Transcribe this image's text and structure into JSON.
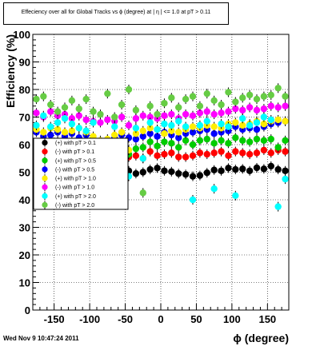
{
  "chart_data": {
    "type": "scatter",
    "title": "Effeciency over all for Global Tracks vs ϕ (degree) at |  η | <= 1.0 at pT > 0.11",
    "xlabel": "ϕ (degree)",
    "ylabel": "Efficiency (%)",
    "xlim": [
      -180,
      180
    ],
    "ylim": [
      0,
      100
    ],
    "x_ticks": [
      -150,
      -100,
      -50,
      0,
      50,
      100,
      150
    ],
    "x_tick_labels": [
      "-150",
      "-100",
      "-50",
      "0",
      "50",
      "100",
      "150"
    ],
    "y_ticks": [
      0,
      10,
      20,
      30,
      40,
      50,
      60,
      70,
      80,
      90,
      100
    ],
    "y_tick_labels": [
      "0",
      "10",
      "20",
      "30",
      "40",
      "50",
      "60",
      "70",
      "80",
      "90",
      "100"
    ],
    "grid": true,
    "legend_position": "left-middle",
    "series": [
      {
        "name": "(+) with pT > 0.1",
        "color": "#000000",
        "points": [
          [
            -175,
            52.5
          ],
          [
            -165,
            51.8
          ],
          [
            -155,
            51.0
          ],
          [
            -145,
            52.2
          ],
          [
            -135,
            50.8
          ],
          [
            -125,
            51.6
          ],
          [
            -115,
            50.5
          ],
          [
            -105,
            49.8
          ],
          [
            -95,
            49.5
          ],
          [
            -85,
            48.5
          ],
          [
            -75,
            48.8
          ],
          [
            -65,
            48.6
          ],
          [
            -55,
            49.5
          ],
          [
            -45,
            50.5
          ],
          [
            -35,
            49.5
          ],
          [
            -25,
            50.0
          ],
          [
            -15,
            51.0
          ],
          [
            -5,
            51.5
          ],
          [
            5,
            50.5
          ],
          [
            15,
            50.2
          ],
          [
            25,
            49.5
          ],
          [
            35,
            49.2
          ],
          [
            45,
            48.5
          ],
          [
            55,
            48.8
          ],
          [
            65,
            49.8
          ],
          [
            75,
            50.8
          ],
          [
            85,
            50.5
          ],
          [
            95,
            51.5
          ],
          [
            105,
            51.0
          ],
          [
            115,
            51.2
          ],
          [
            125,
            50.5
          ],
          [
            135,
            51.6
          ],
          [
            145,
            51.2
          ],
          [
            155,
            52.2
          ],
          [
            165,
            51.0
          ],
          [
            175,
            50.5
          ]
        ]
      },
      {
        "name": "(-) with pT > 0.1",
        "color": "#ff0000",
        "points": [
          [
            -175,
            56.5
          ],
          [
            -165,
            56.0
          ],
          [
            -155,
            56.5
          ],
          [
            -145,
            58.0
          ],
          [
            -135,
            56.5
          ],
          [
            -125,
            57.0
          ],
          [
            -115,
            55.5
          ],
          [
            -105,
            56.5
          ],
          [
            -95,
            55.0
          ],
          [
            -85,
            54.0
          ],
          [
            -75,
            54.5
          ],
          [
            -65,
            55.0
          ],
          [
            -55,
            56.0
          ],
          [
            -45,
            55.5
          ],
          [
            -35,
            56.0
          ],
          [
            -25,
            55.0
          ],
          [
            -15,
            57.5
          ],
          [
            -5,
            56.0
          ],
          [
            5,
            56.5
          ],
          [
            15,
            57.0
          ],
          [
            25,
            55.5
          ],
          [
            35,
            55.5
          ],
          [
            45,
            56.0
          ],
          [
            55,
            57.0
          ],
          [
            65,
            56.5
          ],
          [
            75,
            57.0
          ],
          [
            85,
            57.5
          ],
          [
            95,
            56.0
          ],
          [
            105,
            57.5
          ],
          [
            115,
            57.0
          ],
          [
            125,
            56.5
          ],
          [
            135,
            57.0
          ],
          [
            145,
            58.0
          ],
          [
            155,
            57.0
          ],
          [
            165,
            58.0
          ],
          [
            175,
            57.5
          ]
        ]
      },
      {
        "name": "(+) with pT > 0.5",
        "color": "#00cc00",
        "points": [
          [
            -175,
            60.0
          ],
          [
            -165,
            60.5
          ],
          [
            -155,
            58.5
          ],
          [
            -145,
            61.0
          ],
          [
            -135,
            59.0
          ],
          [
            -125,
            60.5
          ],
          [
            -115,
            60.0
          ],
          [
            -105,
            61.0
          ],
          [
            -95,
            58.5
          ],
          [
            -85,
            56.5
          ],
          [
            -75,
            58.0
          ],
          [
            -65,
            57.5
          ],
          [
            -55,
            59.0
          ],
          [
            -45,
            56.5
          ],
          [
            -35,
            58.5
          ],
          [
            -25,
            59.0
          ],
          [
            -15,
            61.0
          ],
          [
            -5,
            59.5
          ],
          [
            5,
            61.0
          ],
          [
            15,
            60.5
          ],
          [
            25,
            59.0
          ],
          [
            35,
            61.5
          ],
          [
            45,
            60.0
          ],
          [
            55,
            61.5
          ],
          [
            65,
            62.0
          ],
          [
            75,
            60.5
          ],
          [
            85,
            61.5
          ],
          [
            95,
            60.5
          ],
          [
            105,
            62.5
          ],
          [
            115,
            61.5
          ],
          [
            125,
            61.0
          ],
          [
            135,
            62.0
          ],
          [
            145,
            61.5
          ],
          [
            155,
            62.0
          ],
          [
            165,
            59.0
          ],
          [
            175,
            61.5
          ]
        ]
      },
      {
        "name": "(-) with pT > 0.5",
        "color": "#0000ff",
        "points": [
          [
            -175,
            64.5
          ],
          [
            -165,
            63.0
          ],
          [
            -155,
            63.5
          ],
          [
            -145,
            64.5
          ],
          [
            -135,
            63.0
          ],
          [
            -125,
            64.0
          ],
          [
            -115,
            62.5
          ],
          [
            -105,
            63.5
          ],
          [
            -95,
            62.0
          ],
          [
            -85,
            61.0
          ],
          [
            -75,
            61.5
          ],
          [
            -65,
            62.5
          ],
          [
            -55,
            63.5
          ],
          [
            -45,
            62.5
          ],
          [
            -35,
            62.0
          ],
          [
            -25,
            63.0
          ],
          [
            -15,
            64.0
          ],
          [
            -5,
            63.0
          ],
          [
            5,
            64.5
          ],
          [
            15,
            63.5
          ],
          [
            25,
            62.5
          ],
          [
            35,
            64.0
          ],
          [
            45,
            64.5
          ],
          [
            55,
            65.0
          ],
          [
            65,
            65.5
          ],
          [
            75,
            64.0
          ],
          [
            85,
            64.5
          ],
          [
            95,
            65.0
          ],
          [
            105,
            66.5
          ],
          [
            115,
            65.5
          ],
          [
            125,
            66.0
          ],
          [
            135,
            65.5
          ],
          [
            145,
            66.5
          ],
          [
            155,
            67.5
          ],
          [
            165,
            68.0
          ],
          [
            175,
            68.5
          ]
        ]
      },
      {
        "name": "(+) with pT > 1.0",
        "color": "#ffee00",
        "points": [
          [
            -175,
            65.5
          ],
          [
            -165,
            64.5
          ],
          [
            -155,
            66.0
          ],
          [
            -145,
            65.5
          ],
          [
            -135,
            64.5
          ],
          [
            -125,
            65.0
          ],
          [
            -115,
            66.0
          ],
          [
            -105,
            64.5
          ],
          [
            -95,
            63.0
          ],
          [
            -85,
            61.5
          ],
          [
            -75,
            62.0
          ],
          [
            -65,
            63.5
          ],
          [
            -55,
            64.5
          ],
          [
            -45,
            58.0
          ],
          [
            -35,
            64.0
          ],
          [
            -25,
            65.0
          ],
          [
            -15,
            66.0
          ],
          [
            -5,
            65.5
          ],
          [
            5,
            64.0
          ],
          [
            15,
            65.0
          ],
          [
            25,
            64.5
          ],
          [
            35,
            65.5
          ],
          [
            45,
            66.5
          ],
          [
            55,
            66.0
          ],
          [
            65,
            67.0
          ],
          [
            75,
            66.5
          ],
          [
            85,
            66.0
          ],
          [
            95,
            67.5
          ],
          [
            105,
            68.0
          ],
          [
            115,
            67.0
          ],
          [
            125,
            67.5
          ],
          [
            135,
            68.5
          ],
          [
            145,
            67.5
          ],
          [
            155,
            68.5
          ],
          [
            165,
            69.0
          ],
          [
            175,
            68.5
          ]
        ]
      },
      {
        "name": "(-) with pT > 1.0",
        "color": "#ff00ff",
        "points": [
          [
            -175,
            71.5
          ],
          [
            -165,
            70.0
          ],
          [
            -155,
            72.0
          ],
          [
            -145,
            70.5
          ],
          [
            -135,
            71.0
          ],
          [
            -125,
            69.5
          ],
          [
            -115,
            70.5
          ],
          [
            -105,
            69.0
          ],
          [
            -95,
            68.5
          ],
          [
            -85,
            68.0
          ],
          [
            -75,
            69.0
          ],
          [
            -65,
            68.5
          ],
          [
            -55,
            70.0
          ],
          [
            -45,
            67.0
          ],
          [
            -35,
            69.5
          ],
          [
            -25,
            70.5
          ],
          [
            -15,
            70.0
          ],
          [
            -5,
            69.5
          ],
          [
            5,
            70.5
          ],
          [
            15,
            71.0
          ],
          [
            25,
            69.5
          ],
          [
            35,
            71.0
          ],
          [
            45,
            70.5
          ],
          [
            55,
            71.5
          ],
          [
            65,
            72.0
          ],
          [
            75,
            71.0
          ],
          [
            85,
            71.5
          ],
          [
            95,
            72.0
          ],
          [
            105,
            73.0
          ],
          [
            115,
            72.5
          ],
          [
            125,
            73.5
          ],
          [
            135,
            72.5
          ],
          [
            145,
            73.0
          ],
          [
            155,
            74.0
          ],
          [
            165,
            73.5
          ],
          [
            175,
            74.0
          ]
        ]
      },
      {
        "name": "(+) with pT > 2.0",
        "color": "#00ffff",
        "points": [
          [
            -175,
            67.0
          ],
          [
            -165,
            70.5
          ],
          [
            -155,
            66.5
          ],
          [
            -145,
            68.0
          ],
          [
            -135,
            69.5
          ],
          [
            -125,
            67.5
          ],
          [
            -115,
            66.0
          ],
          [
            -105,
            65.0
          ],
          [
            -95,
            68.0
          ],
          [
            -85,
            48.0
          ],
          [
            -75,
            44.0
          ],
          [
            -65,
            66.5
          ],
          [
            -55,
            60.0
          ],
          [
            -45,
            48.5
          ],
          [
            -35,
            66.0
          ],
          [
            -25,
            55.0
          ],
          [
            -15,
            68.0
          ],
          [
            -5,
            65.5
          ],
          [
            5,
            67.5
          ],
          [
            15,
            67.0
          ],
          [
            25,
            68.5
          ],
          [
            35,
            66.5
          ],
          [
            45,
            40.0
          ],
          [
            55,
            67.0
          ],
          [
            65,
            68.5
          ],
          [
            75,
            44.0
          ],
          [
            85,
            67.5
          ],
          [
            95,
            66.5
          ],
          [
            105,
            41.5
          ],
          [
            115,
            69.5
          ],
          [
            125,
            67.0
          ],
          [
            135,
            68.0
          ],
          [
            145,
            70.0
          ],
          [
            155,
            69.0
          ],
          [
            165,
            37.5
          ],
          [
            175,
            47.5
          ]
        ]
      },
      {
        "name": "(-) with pT > 2.0",
        "color": "#66cc44",
        "points": [
          [
            -175,
            76.5
          ],
          [
            -165,
            77.5
          ],
          [
            -155,
            74.5
          ],
          [
            -145,
            72.0
          ],
          [
            -135,
            73.5
          ],
          [
            -125,
            76.0
          ],
          [
            -115,
            73.0
          ],
          [
            -105,
            76.5
          ],
          [
            -95,
            72.0
          ],
          [
            -85,
            71.0
          ],
          [
            -75,
            78.5
          ],
          [
            -65,
            70.0
          ],
          [
            -55,
            74.5
          ],
          [
            -45,
            80.0
          ],
          [
            -35,
            72.5
          ],
          [
            -25,
            42.5
          ],
          [
            -15,
            74.0
          ],
          [
            -5,
            71.0
          ],
          [
            5,
            75.0
          ],
          [
            15,
            77.0
          ],
          [
            25,
            73.5
          ],
          [
            35,
            76.5
          ],
          [
            45,
            77.5
          ],
          [
            55,
            74.0
          ],
          [
            65,
            78.5
          ],
          [
            75,
            76.0
          ],
          [
            85,
            74.5
          ],
          [
            95,
            79.0
          ],
          [
            105,
            75.5
          ],
          [
            115,
            77.0
          ],
          [
            125,
            78.0
          ],
          [
            135,
            76.5
          ],
          [
            145,
            77.5
          ],
          [
            155,
            78.0
          ],
          [
            165,
            80.5
          ],
          [
            175,
            77.5
          ]
        ]
      }
    ]
  },
  "footer_timestamp": "Wed Nov  9 10:47:24 2011"
}
